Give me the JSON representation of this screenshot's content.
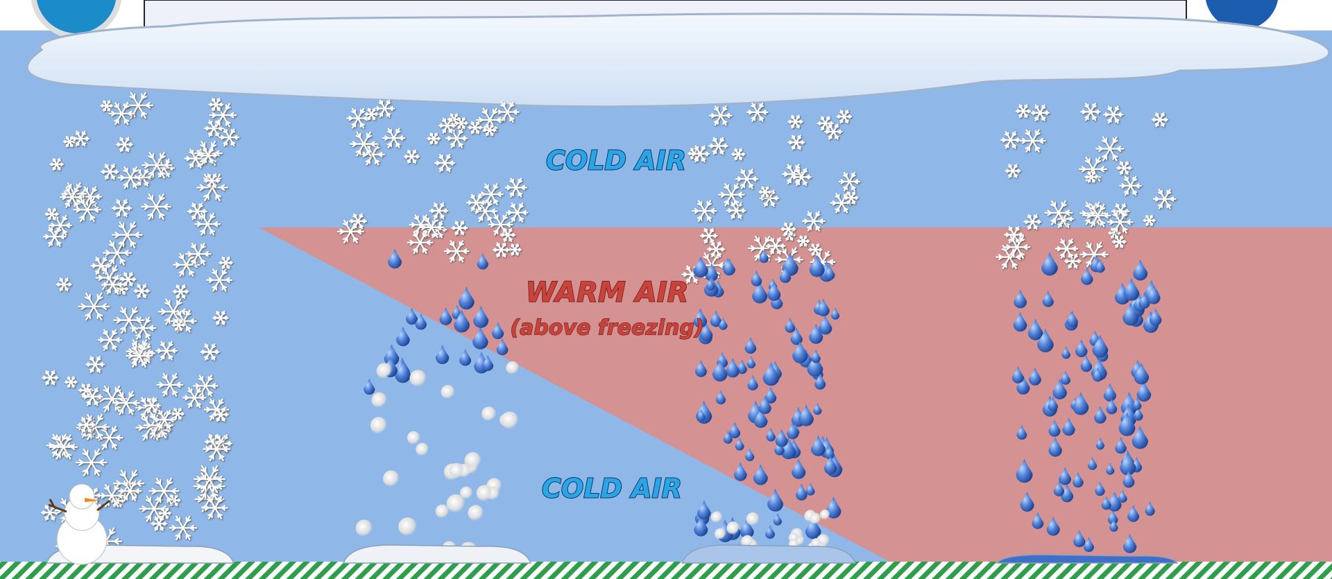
{
  "labels": [
    "COLD AIR",
    "WARM AIR",
    "(above freezing)",
    "COLD AIR"
  ]
}
